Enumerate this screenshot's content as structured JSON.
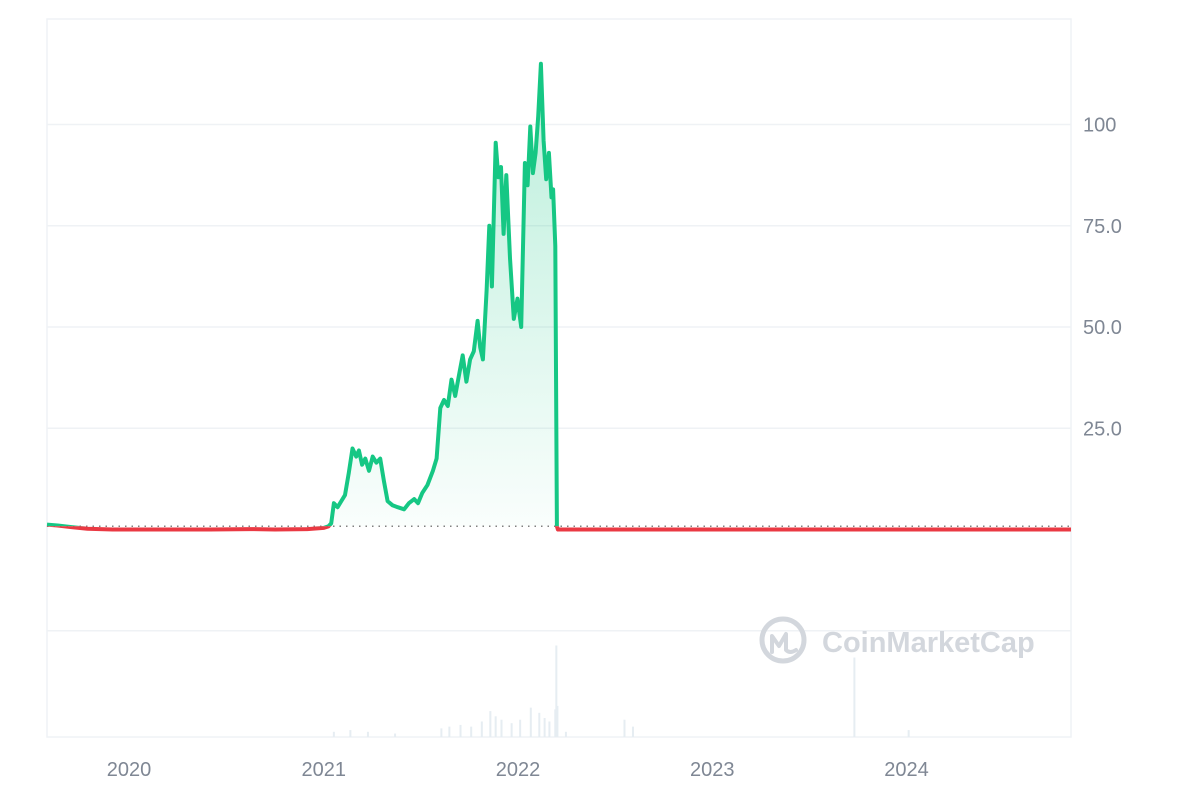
{
  "watermark": {
    "text": "CoinMarketCap",
    "icon": "coinmarketcap-logo-icon"
  },
  "colors": {
    "up": "#16c784",
    "down": "#ea3943",
    "grid": "#eff2f5",
    "axis_text": "#7f8794",
    "baseline": "#808080",
    "volume": "#e6edf2"
  },
  "chart_data": {
    "type": "area",
    "title": "",
    "xlabel": "",
    "ylabel": "",
    "x_ticks": [
      "2020",
      "2021",
      "2022",
      "2023",
      "2024"
    ],
    "y_ticks": [
      "25.0",
      "50.0",
      "75.0",
      "100"
    ],
    "y_tick_values": [
      25,
      50,
      75,
      100
    ],
    "ylim": [
      -25,
      126
    ],
    "xlim": [
      "2019-07-31",
      "2024-11-05"
    ],
    "baseline_value": 0.8,
    "grid": true,
    "series": [
      {
        "color_rule": "green above baseline, red below baseline",
        "points": [
          [
            "2019-07-31",
            1.2
          ],
          [
            "2019-08-20",
            1.0
          ],
          [
            "2019-09-15",
            0.6
          ],
          [
            "2019-10-15",
            0.2
          ],
          [
            "2019-12-01",
            0.0
          ],
          [
            "2020-03-01",
            0.0
          ],
          [
            "2020-06-01",
            0.0
          ],
          [
            "2020-08-15",
            0.1
          ],
          [
            "2020-10-01",
            0.0
          ],
          [
            "2020-12-01",
            0.1
          ],
          [
            "2021-01-01",
            0.4
          ],
          [
            "2021-01-10",
            0.8
          ],
          [
            "2021-01-15",
            1.5
          ],
          [
            "2021-01-20",
            6.5
          ],
          [
            "2021-01-27",
            5.5
          ],
          [
            "2021-02-03",
            7.0
          ],
          [
            "2021-02-10",
            8.5
          ],
          [
            "2021-02-17",
            14.0
          ],
          [
            "2021-02-24",
            20.0
          ],
          [
            "2021-03-03",
            18.0
          ],
          [
            "2021-03-08",
            19.5
          ],
          [
            "2021-03-14",
            16.0
          ],
          [
            "2021-03-20",
            17.5
          ],
          [
            "2021-03-27",
            14.5
          ],
          [
            "2021-04-03",
            18.0
          ],
          [
            "2021-04-10",
            16.5
          ],
          [
            "2021-04-17",
            17.5
          ],
          [
            "2021-04-24",
            12.0
          ],
          [
            "2021-05-01",
            7.0
          ],
          [
            "2021-05-10",
            6.0
          ],
          [
            "2021-05-20",
            5.5
          ],
          [
            "2021-06-01",
            5.0
          ],
          [
            "2021-06-10",
            6.5
          ],
          [
            "2021-06-20",
            7.5
          ],
          [
            "2021-06-27",
            6.5
          ],
          [
            "2021-07-05",
            9.0
          ],
          [
            "2021-07-15",
            11.0
          ],
          [
            "2021-07-25",
            14.5
          ],
          [
            "2021-08-01",
            17.5
          ],
          [
            "2021-08-08",
            30.0
          ],
          [
            "2021-08-15",
            32.0
          ],
          [
            "2021-08-22",
            30.5
          ],
          [
            "2021-08-29",
            37.0
          ],
          [
            "2021-09-05",
            33.0
          ],
          [
            "2021-09-12",
            38.0
          ],
          [
            "2021-09-19",
            43.0
          ],
          [
            "2021-09-26",
            36.5
          ],
          [
            "2021-10-03",
            42.0
          ],
          [
            "2021-10-10",
            44.0
          ],
          [
            "2021-10-17",
            51.5
          ],
          [
            "2021-10-22",
            45.0
          ],
          [
            "2021-10-27",
            42.0
          ],
          [
            "2021-11-03",
            59.0
          ],
          [
            "2021-11-08",
            75.0
          ],
          [
            "2021-11-13",
            60.0
          ],
          [
            "2021-11-20",
            95.5
          ],
          [
            "2021-11-25",
            87.0
          ],
          [
            "2021-11-30",
            89.5
          ],
          [
            "2021-12-05",
            73.0
          ],
          [
            "2021-12-10",
            87.5
          ],
          [
            "2021-12-17",
            67.0
          ],
          [
            "2021-12-24",
            52.0
          ],
          [
            "2021-12-31",
            57.0
          ],
          [
            "2022-01-07",
            50.0
          ],
          [
            "2022-01-14",
            90.5
          ],
          [
            "2022-01-19",
            85.0
          ],
          [
            "2022-01-24",
            99.5
          ],
          [
            "2022-01-29",
            88.0
          ],
          [
            "2022-02-03",
            93.0
          ],
          [
            "2022-02-08",
            102.0
          ],
          [
            "2022-02-13",
            115.0
          ],
          [
            "2022-02-18",
            96.0
          ],
          [
            "2022-02-23",
            86.5
          ],
          [
            "2022-02-28",
            93.0
          ],
          [
            "2022-03-05",
            82.0
          ],
          [
            "2022-03-08",
            84.0
          ],
          [
            "2022-03-12",
            70.0
          ],
          [
            "2022-03-15",
            0.8
          ],
          [
            "2022-03-17",
            0.0
          ],
          [
            "2022-06-01",
            0.0
          ],
          [
            "2023-01-01",
            0.0
          ],
          [
            "2024-01-01",
            0.0
          ],
          [
            "2024-11-05",
            0.0
          ]
        ]
      }
    ],
    "volume": [
      [
        "2021-01-20",
        0.3
      ],
      [
        "2021-02-20",
        0.4
      ],
      [
        "2021-03-25",
        0.3
      ],
      [
        "2021-05-15",
        0.2
      ],
      [
        "2021-08-10",
        0.5
      ],
      [
        "2021-08-25",
        0.6
      ],
      [
        "2021-09-15",
        0.7
      ],
      [
        "2021-10-05",
        0.6
      ],
      [
        "2021-10-25",
        0.9
      ],
      [
        "2021-11-10",
        1.5
      ],
      [
        "2021-11-20",
        1.2
      ],
      [
        "2021-12-01",
        1.0
      ],
      [
        "2021-12-20",
        0.8
      ],
      [
        "2022-01-05",
        1.0
      ],
      [
        "2022-01-25",
        1.7
      ],
      [
        "2022-02-10",
        1.4
      ],
      [
        "2022-02-20",
        1.1
      ],
      [
        "2022-03-01",
        0.9
      ],
      [
        "2022-03-12",
        1.6
      ],
      [
        "2022-03-14",
        5.3
      ],
      [
        "2022-03-16",
        1.8
      ],
      [
        "2022-04-01",
        0.3
      ],
      [
        "2022-07-20",
        1.0
      ],
      [
        "2022-08-05",
        0.6
      ],
      [
        "2023-09-25",
        4.6
      ],
      [
        "2024-01-05",
        0.4
      ]
    ],
    "volume_max": 5.5
  }
}
